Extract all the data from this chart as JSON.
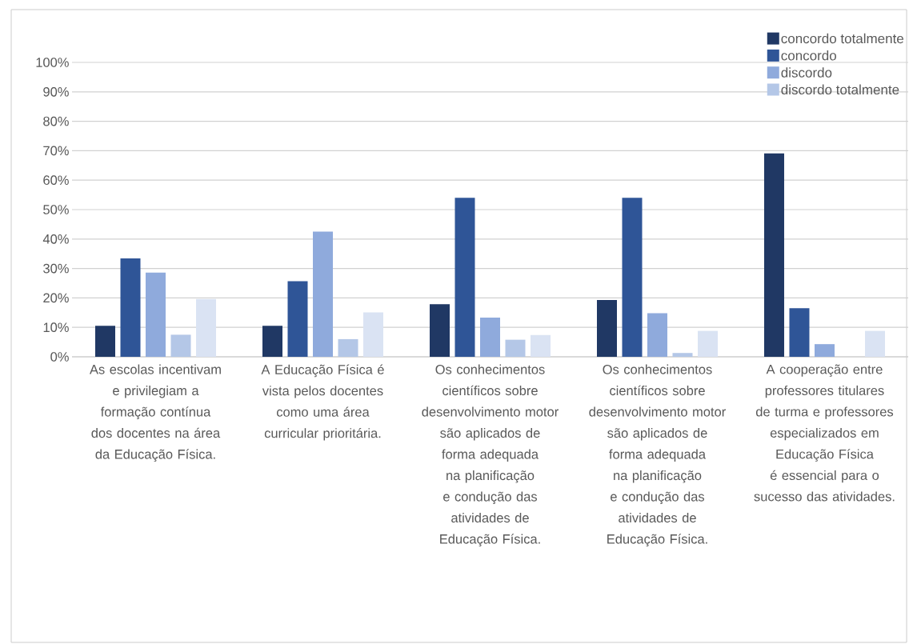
{
  "chart_data": {
    "type": "bar",
    "categories": [
      "As escolas incentivam e privilegiam a formação contínua dos docentes na área da Educação Física.",
      "A Educação Física é vista pelos docentes como uma área curricular prioritária.",
      "Os conhecimentos científicos sobre desenvolvimento motor são aplicados de forma adequada na planificação e condução das atividades de Educação Física.",
      "Os conhecimentos científicos sobre desenvolvimento motor são aplicados de forma adequada na planificação e condução das atividades de Educação Física.",
      "A cooperação entre professores titulares de turma e professores especializados em Educação Física é essencial para o sucesso das atividades."
    ],
    "series": [
      {
        "name": "concordo totalmente",
        "color": "#203864",
        "values": [
          10.5,
          10.5,
          17.9,
          19.3,
          69.1
        ]
      },
      {
        "name": "concordo",
        "color": "#2f5597",
        "values": [
          33.4,
          25.7,
          54.0,
          54.0,
          16.5
        ]
      },
      {
        "name": "discordo",
        "color": "#8faadc",
        "values": [
          28.6,
          42.5,
          13.3,
          14.8,
          4.3
        ]
      },
      {
        "name": "discordo totalmente",
        "color": "#b4c7e7",
        "values": [
          7.5,
          6.0,
          5.8,
          1.3,
          0
        ]
      },
      {
        "color": "#dae3f3",
        "values": [
          19.6,
          15.1,
          7.4,
          8.8,
          8.8
        ]
      }
    ],
    "ylim": [
      0,
      100
    ],
    "yticks": [
      {
        "value": 0,
        "label": "0%"
      },
      {
        "value": 10,
        "label": "10%"
      },
      {
        "value": 20,
        "label": "20%"
      },
      {
        "value": 30,
        "label": "30%"
      },
      {
        "value": 40,
        "label": "40%"
      },
      {
        "value": 50,
        "label": "50%"
      },
      {
        "value": 60,
        "label": "60%"
      },
      {
        "value": 70,
        "label": "70%"
      },
      {
        "value": 80,
        "label": "80%"
      },
      {
        "value": 90,
        "label": "90%"
      },
      {
        "value": 100,
        "label": "100%"
      }
    ],
    "grid": "y",
    "legend": "top right"
  }
}
